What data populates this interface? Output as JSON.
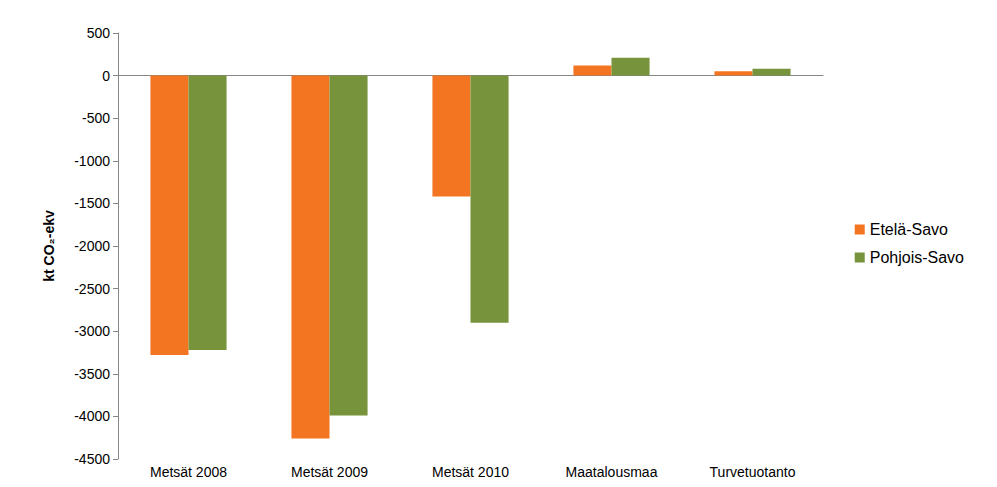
{
  "chart_data": {
    "type": "bar",
    "y_label": "kt CO₂-ekv",
    "categories": [
      "Metsät 2008",
      "Metsät 2009",
      "Metsät 2010",
      "Maatalousmaa",
      "Turvetuotanto"
    ],
    "series": [
      {
        "name": "Etelä-Savo",
        "color": "#f47521",
        "values": [
          -3280,
          -4260,
          -1420,
          120,
          50
        ]
      },
      {
        "name": "Pohjois-Savo",
        "color": "#77933c",
        "values": [
          -3220,
          -3990,
          -2900,
          210,
          80
        ]
      }
    ],
    "ylim": [
      -4500,
      500
    ],
    "yticks": [
      -4500,
      -4000,
      -3500,
      -3000,
      -2500,
      -2000,
      -1500,
      -1000,
      -500,
      0,
      500
    ],
    "grid": false,
    "legend": "right"
  }
}
